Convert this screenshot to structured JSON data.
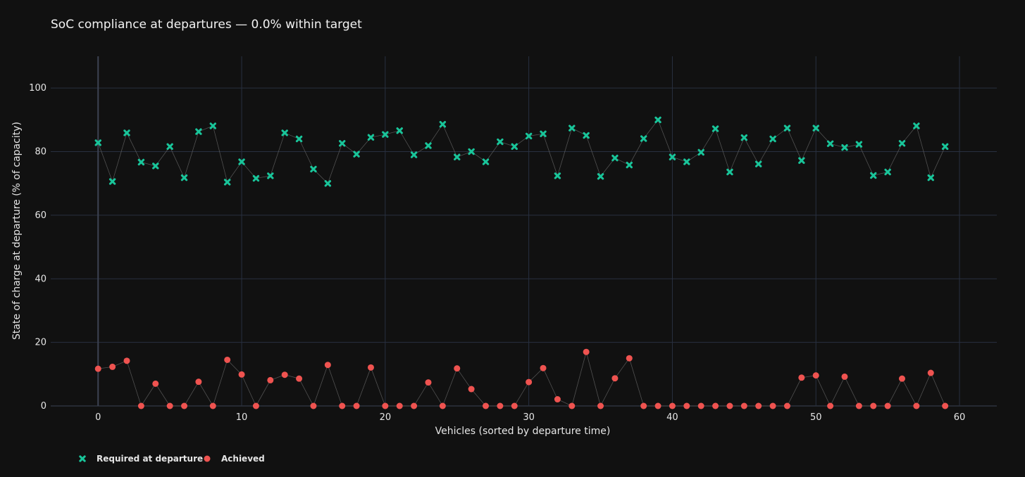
{
  "chart_data": {
    "type": "scatter",
    "title": "SoC compliance at departures — 0.0% within target",
    "xlabel": "Vehicles (sorted by departure time)",
    "ylabel": "State of charge at departure (% of capacity)",
    "xlim": [
      -3.3,
      62.6
    ],
    "ylim": [
      0,
      110
    ],
    "x_ticks": [
      0,
      10,
      20,
      30,
      40,
      50,
      60
    ],
    "y_ticks": [
      0,
      20,
      40,
      60,
      80,
      100
    ],
    "grid": true,
    "legend_position": "bottom-left",
    "connector_color": "#666666",
    "x": [
      0,
      1,
      2,
      3,
      4,
      5,
      6,
      7,
      8,
      9,
      10,
      11,
      12,
      13,
      14,
      15,
      16,
      17,
      18,
      19,
      20,
      21,
      22,
      23,
      24,
      25,
      26,
      27,
      28,
      29,
      30,
      31,
      32,
      33,
      34,
      35,
      36,
      37,
      38,
      39,
      40,
      41,
      42,
      43,
      44,
      45,
      46,
      47,
      48,
      49,
      50,
      51,
      52,
      53,
      54,
      55,
      56,
      57,
      58,
      59
    ],
    "series": [
      {
        "name": "Required at departure",
        "color": "#19c59a",
        "marker": "x",
        "values": [
          82.8,
          70.6,
          85.9,
          76.7,
          75.5,
          81.6,
          71.8,
          86.3,
          88.1,
          70.4,
          76.8,
          71.6,
          72.4,
          85.9,
          84.0,
          74.5,
          70.0,
          82.6,
          79.2,
          84.5,
          85.4,
          86.6,
          79.0,
          81.9,
          88.6,
          78.3,
          80.0,
          76.8,
          83.1,
          81.6,
          84.9,
          85.6,
          72.4,
          87.4,
          85.1,
          72.2,
          78.0,
          75.8,
          84.1,
          90.0,
          78.3,
          76.8,
          79.8,
          87.2,
          73.6,
          84.4,
          76.1,
          84.0,
          87.4,
          77.2,
          87.4,
          82.5,
          81.3,
          82.3,
          72.5,
          73.6,
          82.6,
          88.1,
          71.8,
          81.6
        ]
      },
      {
        "name": "Achieved",
        "color": "#ef5350",
        "marker": "circle",
        "values": [
          11.7,
          12.3,
          14.2,
          0,
          7.0,
          0,
          0,
          7.6,
          0,
          14.5,
          9.9,
          0,
          8.1,
          9.8,
          8.6,
          0,
          12.9,
          0,
          0,
          12.1,
          0,
          0,
          0,
          7.4,
          0,
          11.8,
          5.3,
          0,
          0,
          0,
          7.5,
          11.9,
          2.1,
          0,
          17.0,
          0,
          8.7,
          15.0,
          0,
          0,
          0,
          0,
          0,
          0,
          0,
          0,
          0,
          0,
          0,
          8.9,
          9.6,
          0,
          9.2,
          0,
          0,
          0,
          8.6,
          0,
          10.4,
          0
        ]
      }
    ]
  }
}
